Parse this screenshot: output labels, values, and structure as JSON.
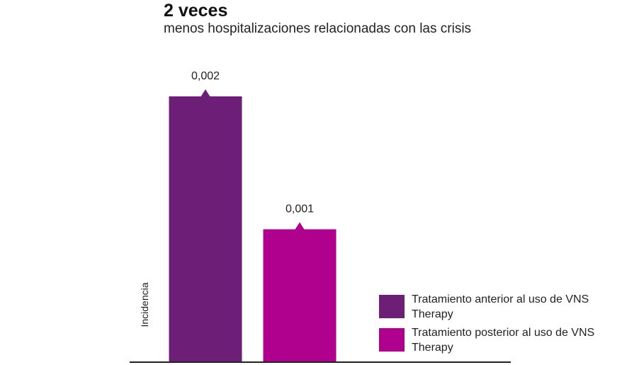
{
  "header": {
    "title": "2 veces",
    "subtitle": "menos hospitalizaciones relacionadas con las crisis"
  },
  "colors": {
    "series_1": "#6d1f78",
    "series_2": "#b0008e",
    "axis": "#222222"
  },
  "chart_data": {
    "type": "bar",
    "title": "2 veces",
    "subtitle": "menos hospitalizaciones relacionadas con las crisis",
    "ylabel": "Incidencia",
    "xlabel": "",
    "categories": [
      "Tratamiento anterior al uso de VNS Therapy",
      "Tratamiento posterior al uso de VNS Therapy"
    ],
    "values": [
      0.002,
      0.001
    ],
    "data_labels": [
      "0,002",
      "0,001"
    ],
    "ylim": [
      0,
      0.00264
    ],
    "grid": false,
    "legend_position": "bottom-right"
  },
  "legend": {
    "items": [
      {
        "label": "Tratamiento anterior al uso de VNS Therapy",
        "color": "#6d1f78"
      },
      {
        "label": "Tratamiento posterior al uso de VNS Therapy",
        "color": "#b0008e"
      }
    ]
  }
}
